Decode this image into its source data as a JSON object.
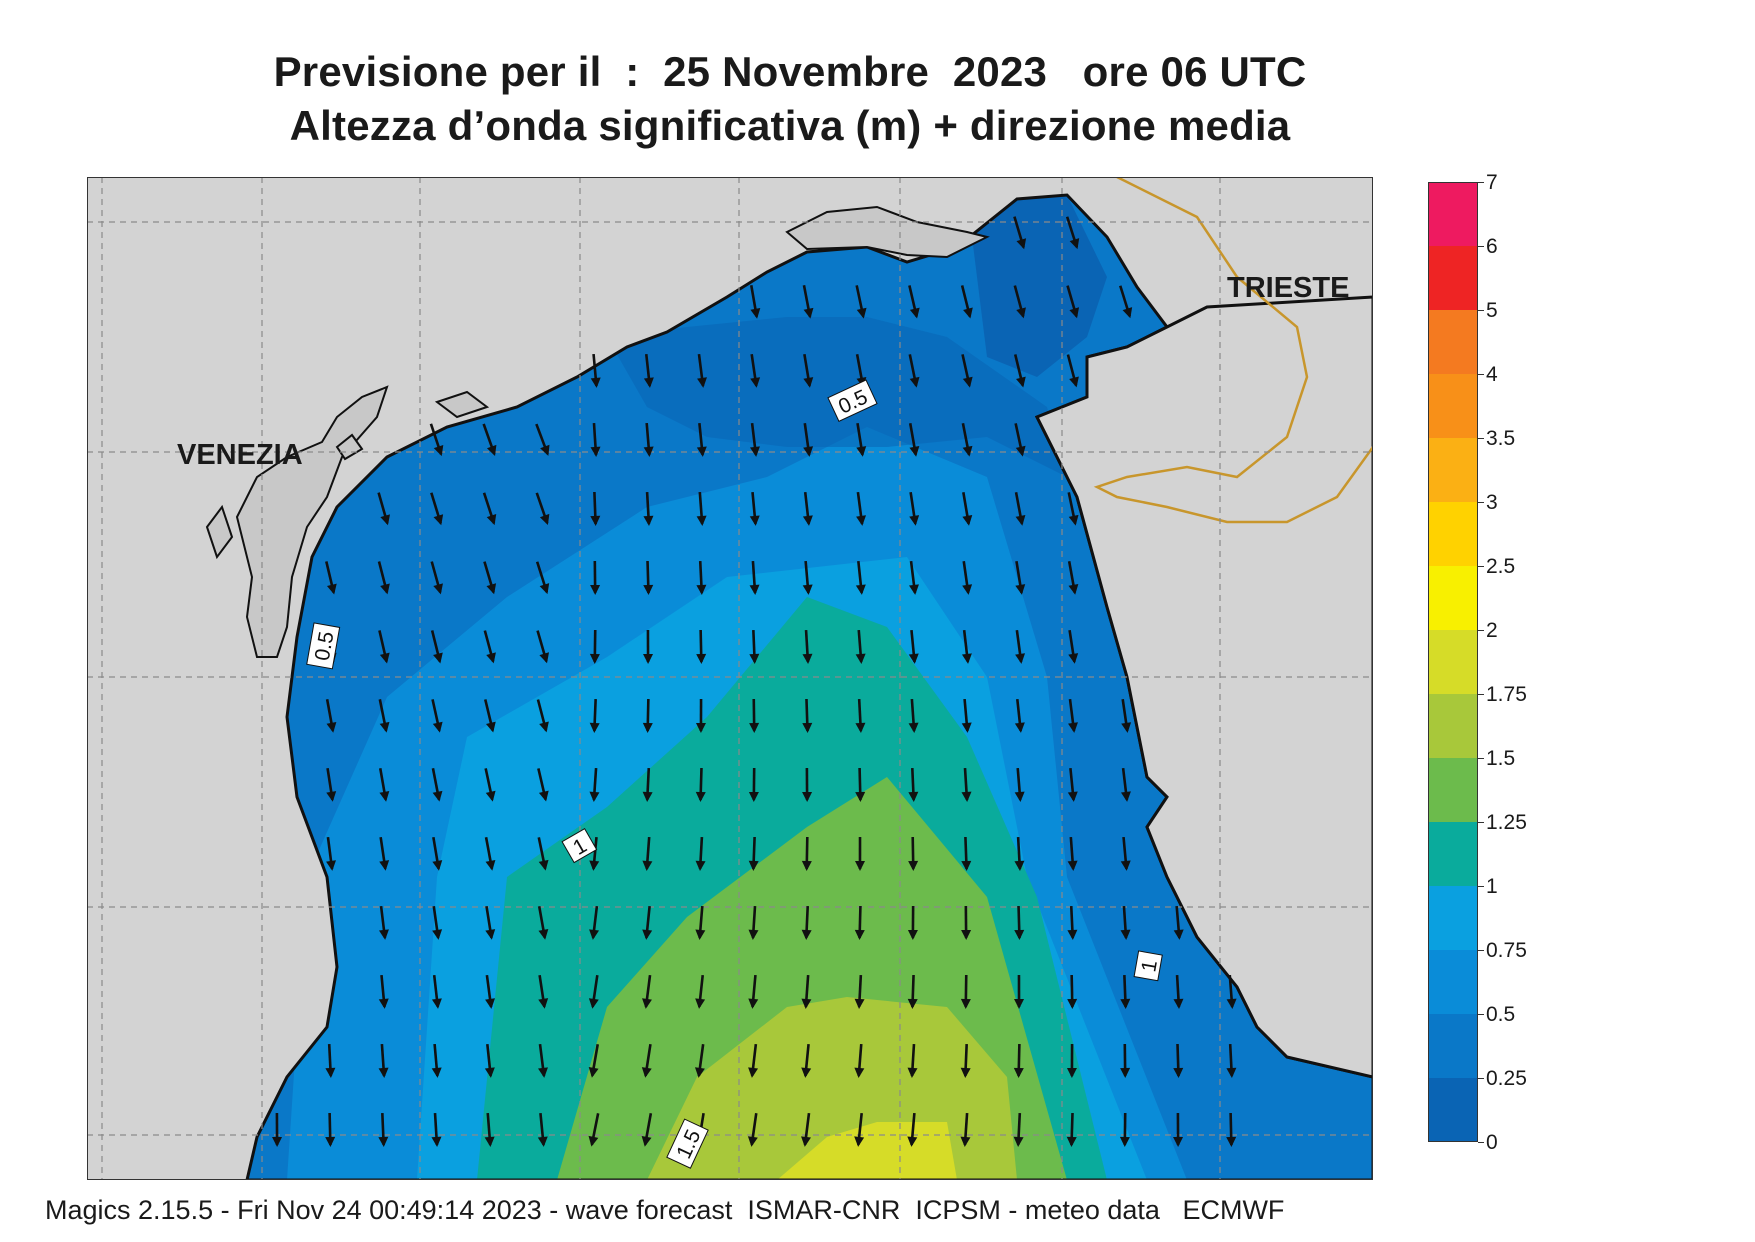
{
  "title_line1": "Previsione per il  :  25 Novembre  2023   ore 06 UTC",
  "title_line2": "Altezza d’onda significativa (m) + direzione media",
  "footer": "Magics 2.15.5 - Fri Nov 24 00:49:14 2023 - wave forecast  ISMAR-CNR  ICPSM - meteo data   ECMWF",
  "cities": {
    "venezia": "VENEZIA",
    "trieste": "TRIESTE"
  },
  "contour_labels": {
    "a": "0.5",
    "b": "0.5",
    "c": "1",
    "d": "1",
    "e": "1.5"
  },
  "legend": {
    "labels": [
      "0",
      "0.25",
      "0.5",
      "0.75",
      "1",
      "1.25",
      "1.5",
      "1.75",
      "2",
      "2.5",
      "3",
      "3.5",
      "4",
      "5",
      "6",
      "7"
    ],
    "colors": [
      "#0a64b4",
      "#0a78c8",
      "#0a8cd8",
      "#0aa0e0",
      "#0aab9c",
      "#6cbb4c",
      "#a8c83a",
      "#d6dc28",
      "#f8f000",
      "#ffd200",
      "#fbb014",
      "#f89018",
      "#f47a20",
      "#ee2424",
      "#ee1a60"
    ]
  },
  "colors": {
    "land": "#d3d3d3",
    "coast": "#111111",
    "border": "#c8962c",
    "arrow": "#111111"
  },
  "wave_direction": "south-southeast"
}
